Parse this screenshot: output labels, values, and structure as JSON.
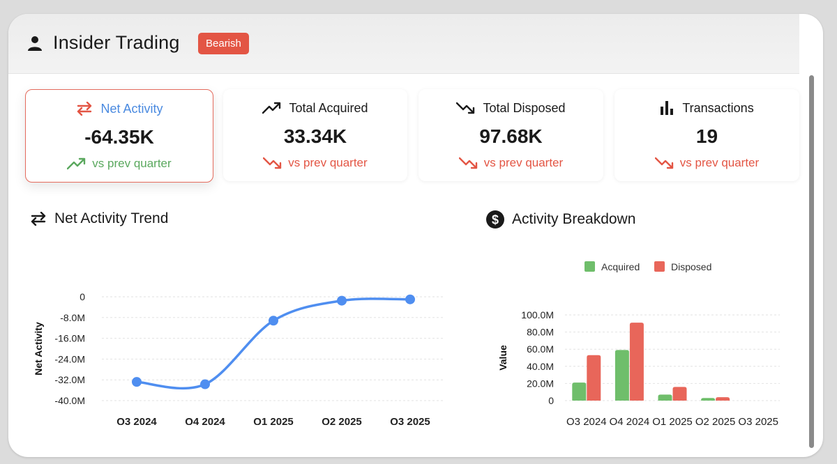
{
  "header": {
    "title": "Insider Trading",
    "badge": "Bearish",
    "icon": "person-icon"
  },
  "cards": [
    {
      "label": "Net Activity",
      "value": "-64.35K",
      "trend": "vs prev quarter",
      "trend_direction": "up",
      "icon": "swap-arrows-icon",
      "active": true
    },
    {
      "label": "Total Acquired",
      "value": "33.34K",
      "trend": "vs prev quarter",
      "trend_direction": "down",
      "icon": "trending-up-icon"
    },
    {
      "label": "Total Disposed",
      "value": "97.68K",
      "trend": "vs prev quarter",
      "trend_direction": "down",
      "icon": "trending-down-icon"
    },
    {
      "label": "Transactions",
      "value": "19",
      "trend": "vs prev quarter",
      "trend_direction": "down",
      "icon": "bar-chart-icon"
    }
  ],
  "colors": {
    "accent_blue": "#4a8ae0",
    "bearish": "#e35544",
    "up": "#5aa85e",
    "down": "#e35544",
    "acquired": "#6fbe6b",
    "disposed": "#e8665a",
    "line": "#4f8ef0"
  },
  "chart_data": [
    {
      "type": "line",
      "title": "Net Activity Trend",
      "ylabel": "Net Activity",
      "categories": [
        "Q3 2024",
        "Q4 2024",
        "Q1 2025",
        "Q2 2025",
        "Q3 2025"
      ],
      "values": [
        -32.8,
        -33.7,
        -9.2,
        -1.5,
        -1.0
      ],
      "ylim": [
        -40,
        0
      ],
      "yticks": [
        0,
        -8,
        -16,
        -24,
        -32,
        -40
      ],
      "ytick_labels": [
        "0",
        "-8.0M",
        "-16.0M",
        "-24.0M",
        "-32.0M",
        "-40.0M"
      ],
      "grid": true
    },
    {
      "type": "bar",
      "title": "Activity Breakdown",
      "ylabel": "Value",
      "categories": [
        "Q3 2024",
        "Q4 2024",
        "Q1 2025",
        "Q2 2025",
        "Q3 2025"
      ],
      "series": [
        {
          "name": "Acquired",
          "values": [
            21,
            59,
            7,
            3,
            0
          ]
        },
        {
          "name": "Disposed",
          "values": [
            53,
            91,
            16,
            4,
            0
          ]
        }
      ],
      "ylim": [
        0,
        100
      ],
      "yticks": [
        0,
        20,
        40,
        60,
        80,
        100
      ],
      "ytick_labels": [
        "0",
        "20.0M",
        "40.0M",
        "60.0M",
        "80.0M",
        "100.0M"
      ],
      "legend": "top",
      "grid": true
    }
  ]
}
